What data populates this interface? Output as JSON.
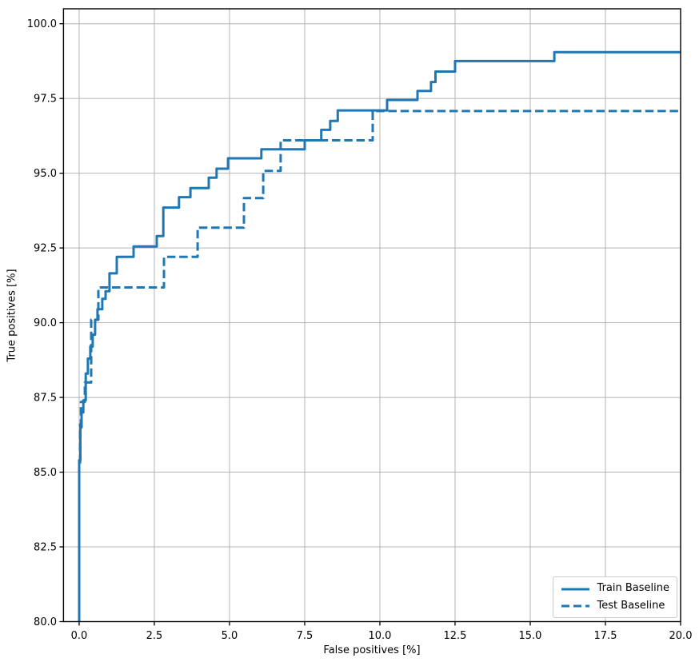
{
  "figure": {
    "background": "#ffffff"
  },
  "chart_data": {
    "type": "line",
    "subtype": "step-roc-curves",
    "title": "",
    "xlabel": "False positives [%]",
    "ylabel": "True positives [%]",
    "xlim": [
      -0.52,
      20.0
    ],
    "ylim": [
      80.0,
      100.5
    ],
    "grid": true,
    "grid_color": "#b4b4b4",
    "axis_color": "#000000",
    "tick_label_color": "#000000",
    "line_color": "#1f77b4",
    "legend_position": "lower right",
    "x_ticks": {
      "values": [
        0.0,
        2.5,
        5.0,
        7.5,
        10.0,
        12.5,
        15.0,
        17.5,
        20.0
      ],
      "labels": [
        "0.0",
        "2.5",
        "5.0",
        "7.5",
        "10.0",
        "12.5",
        "15.0",
        "17.5",
        "20.0"
      ]
    },
    "y_ticks": {
      "values": [
        80.0,
        82.5,
        85.0,
        87.5,
        90.0,
        92.5,
        95.0,
        97.5,
        100.0
      ],
      "labels": [
        "80.0",
        "82.5",
        "85.0",
        "87.5",
        "90.0",
        "92.5",
        "95.0",
        "97.5",
        "100.0"
      ]
    },
    "series": [
      {
        "name": "Train Baseline",
        "line_style": "solid",
        "color": "#1f77b4",
        "points": [
          [
            0,
            80
          ],
          [
            0,
            85.4
          ],
          [
            0.04,
            85.4
          ],
          [
            0.04,
            86.5
          ],
          [
            0.08,
            86.5
          ],
          [
            0.08,
            87.0
          ],
          [
            0.14,
            87.0
          ],
          [
            0.14,
            87.4
          ],
          [
            0.22,
            87.4
          ],
          [
            0.22,
            88.3
          ],
          [
            0.29,
            88.3
          ],
          [
            0.29,
            88.8
          ],
          [
            0.37,
            88.8
          ],
          [
            0.37,
            89.2
          ],
          [
            0.45,
            89.2
          ],
          [
            0.45,
            89.6
          ],
          [
            0.53,
            89.6
          ],
          [
            0.53,
            90.1
          ],
          [
            0.61,
            90.1
          ],
          [
            0.61,
            90.45
          ],
          [
            0.77,
            90.45
          ],
          [
            0.77,
            90.8
          ],
          [
            0.88,
            90.8
          ],
          [
            0.88,
            91.05
          ],
          [
            1.01,
            91.05
          ],
          [
            1.01,
            91.65
          ],
          [
            1.25,
            91.65
          ],
          [
            1.25,
            92.2
          ],
          [
            1.81,
            92.2
          ],
          [
            1.81,
            92.55
          ],
          [
            2.58,
            92.55
          ],
          [
            2.58,
            92.9
          ],
          [
            2.8,
            92.9
          ],
          [
            2.8,
            93.85
          ],
          [
            3.32,
            93.85
          ],
          [
            3.32,
            94.2
          ],
          [
            3.7,
            94.2
          ],
          [
            3.7,
            94.5
          ],
          [
            4.31,
            94.5
          ],
          [
            4.31,
            94.85
          ],
          [
            4.57,
            94.85
          ],
          [
            4.57,
            95.15
          ],
          [
            4.95,
            95.15
          ],
          [
            4.95,
            95.5
          ],
          [
            6.06,
            95.5
          ],
          [
            6.06,
            95.8
          ],
          [
            7.5,
            95.8
          ],
          [
            7.5,
            96.1
          ],
          [
            8.05,
            96.1
          ],
          [
            8.05,
            96.45
          ],
          [
            8.35,
            96.45
          ],
          [
            8.35,
            96.75
          ],
          [
            8.6,
            96.75
          ],
          [
            8.6,
            97.1
          ],
          [
            10.24,
            97.1
          ],
          [
            10.24,
            97.45
          ],
          [
            11.25,
            97.45
          ],
          [
            11.25,
            97.75
          ],
          [
            11.7,
            97.75
          ],
          [
            11.7,
            98.05
          ],
          [
            11.85,
            98.05
          ],
          [
            11.85,
            98.4
          ],
          [
            12.5,
            98.4
          ],
          [
            12.5,
            98.75
          ],
          [
            15.8,
            98.75
          ],
          [
            15.8,
            99.05
          ],
          [
            20,
            99.05
          ]
        ]
      },
      {
        "name": "Test Baseline",
        "line_style": "dashed",
        "color": "#1f77b4",
        "points": [
          [
            0,
            80
          ],
          [
            0,
            85.2
          ],
          [
            0.03,
            85.2
          ],
          [
            0.03,
            86.6
          ],
          [
            0.06,
            86.6
          ],
          [
            0.06,
            87.35
          ],
          [
            0.19,
            87.35
          ],
          [
            0.19,
            88.0
          ],
          [
            0.4,
            88.0
          ],
          [
            0.4,
            90.1
          ],
          [
            0.64,
            90.1
          ],
          [
            0.64,
            91.18
          ],
          [
            2.82,
            91.18
          ],
          [
            2.82,
            92.2
          ],
          [
            3.94,
            92.2
          ],
          [
            3.94,
            93.18
          ],
          [
            5.48,
            93.18
          ],
          [
            5.48,
            94.17
          ],
          [
            6.12,
            94.17
          ],
          [
            6.12,
            95.08
          ],
          [
            6.7,
            95.08
          ],
          [
            6.7,
            96.1
          ],
          [
            9.76,
            96.1
          ],
          [
            9.76,
            97.08
          ],
          [
            20,
            97.08
          ]
        ]
      }
    ]
  }
}
